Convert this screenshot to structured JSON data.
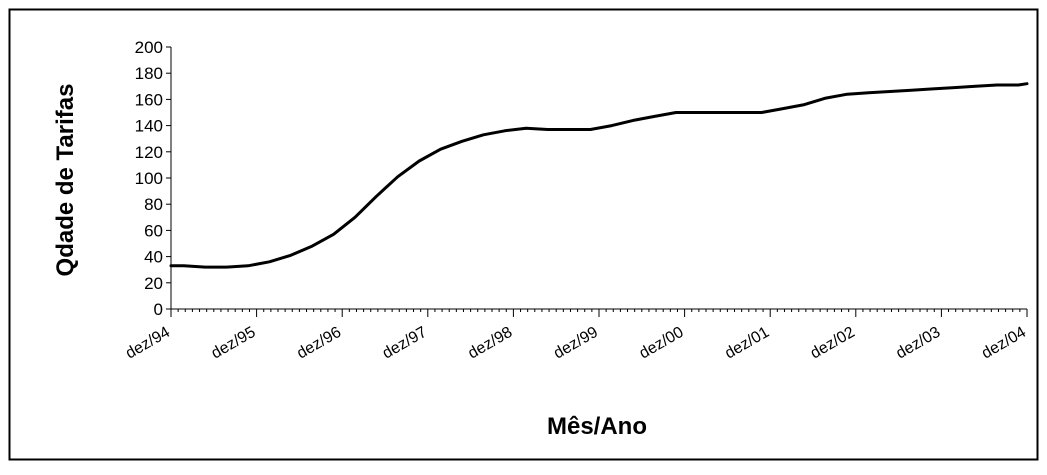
{
  "chart_data": {
    "type": "line",
    "title": "",
    "xlabel": "Mês/Ano",
    "ylabel": "Qdade de Tarifas",
    "ylim": [
      0,
      200
    ],
    "yticks": [
      0,
      20,
      40,
      60,
      80,
      100,
      120,
      140,
      160,
      180,
      200
    ],
    "categories": [
      "dez/94",
      "dez/95",
      "dez/96",
      "dez/97",
      "dez/98",
      "dez/99",
      "dez/00",
      "dez/01",
      "dez/02",
      "dez/03",
      "dez/04"
    ],
    "grid": false,
    "legend": "none",
    "line_color": "#000000",
    "series": [
      {
        "x": [
          0,
          0.15,
          0.4,
          0.65,
          0.9,
          1.15,
          1.4,
          1.65,
          1.9,
          2.15,
          2.4,
          2.65,
          2.9,
          3.15,
          3.4,
          3.65,
          3.9,
          4.15,
          4.4,
          4.65,
          4.9,
          5.15,
          5.4,
          5.65,
          5.9,
          6.15,
          6.4,
          6.65,
          6.9,
          7.15,
          7.4,
          7.65,
          7.9,
          8.15,
          8.4,
          8.65,
          8.9,
          9.15,
          9.4,
          9.65,
          9.9,
          10.0
        ],
        "values": [
          33,
          33,
          32,
          32,
          33,
          36,
          41,
          48,
          57,
          70,
          86,
          101,
          113,
          122,
          128,
          133,
          136,
          138,
          137,
          137,
          137,
          140,
          144,
          147,
          150,
          150,
          150,
          150,
          150,
          153,
          156,
          161,
          164,
          165,
          166,
          167,
          168,
          169,
          170,
          171,
          171,
          172
        ]
      }
    ]
  }
}
